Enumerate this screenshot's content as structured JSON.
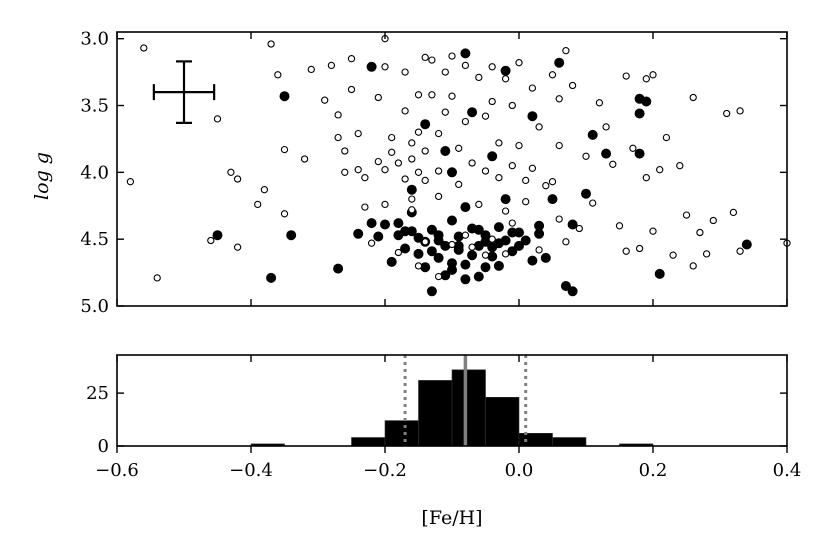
{
  "chart_data": [
    {
      "type": "scatter",
      "ylabel": "log g",
      "xlim": [
        -0.6,
        0.4
      ],
      "ylim": [
        5.0,
        2.95
      ],
      "y_inverted": true,
      "yticks": [
        3.0,
        3.5,
        4.0,
        4.5,
        5.0
      ],
      "ytick_labels": [
        "3.0",
        "3.5",
        "4.0",
        "4.5",
        "5.0"
      ],
      "xticks": [
        -0.6,
        -0.4,
        -0.2,
        0.0,
        0.2,
        0.4
      ],
      "xtick_labels": [
        "",
        "",
        "",
        "",
        "",
        ""
      ],
      "error_bar": {
        "x": -0.5,
        "y": 3.4,
        "xerr": 0.045,
        "yerr": 0.23
      },
      "series": [
        {
          "marker": "filled-circle",
          "color": "#000000",
          "points": [
            [
              -0.45,
              4.47
            ],
            [
              -0.37,
              4.79
            ],
            [
              -0.35,
              3.43
            ],
            [
              -0.34,
              4.47
            ],
            [
              -0.27,
              4.72
            ],
            [
              -0.24,
              4.46
            ],
            [
              -0.22,
              3.21
            ],
            [
              -0.22,
              4.38
            ],
            [
              -0.21,
              4.48
            ],
            [
              -0.17,
              4.57
            ],
            [
              -0.16,
              4.44
            ],
            [
              -0.14,
              4.52
            ],
            [
              -0.12,
              4.47
            ],
            [
              -0.1,
              4.73
            ],
            [
              -0.09,
              4.55
            ],
            [
              -0.07,
              4.62
            ],
            [
              -0.05,
              4.52
            ],
            [
              -0.03,
              4.7
            ],
            [
              -0.01,
              4.59
            ],
            [
              0.01,
              4.51
            ],
            [
              0.03,
              4.4
            ],
            [
              -0.07,
              3.55
            ],
            [
              -0.02,
              3.24
            ],
            [
              0.02,
              3.58
            ],
            [
              0.03,
              4.46
            ],
            [
              0.06,
              3.18
            ],
            [
              0.07,
              4.85
            ],
            [
              0.08,
              4.89
            ],
            [
              0.11,
              3.72
            ],
            [
              0.13,
              3.86
            ],
            [
              0.18,
              3.45
            ],
            [
              0.18,
              3.56
            ],
            [
              0.19,
              3.47
            ],
            [
              0.18,
              3.86
            ],
            [
              0.21,
              4.76
            ],
            [
              0.34,
              4.54
            ],
            [
              -0.08,
              3.11
            ],
            [
              -0.11,
              3.84
            ],
            [
              -0.1,
              4.0
            ],
            [
              -0.04,
              3.88
            ],
            [
              -0.02,
              4.2
            ],
            [
              -0.13,
              4.89
            ],
            [
              -0.16,
              4.3
            ],
            [
              -0.18,
              4.47
            ],
            [
              -0.2,
              4.39
            ],
            [
              -0.06,
              4.43
            ],
            [
              -0.04,
              4.56
            ],
            [
              0.05,
              4.2
            ],
            [
              0.08,
              4.39
            ],
            [
              0.1,
              4.16
            ],
            [
              -0.19,
              4.67
            ],
            [
              -0.15,
              4.61
            ],
            [
              -0.12,
              4.64
            ],
            [
              -0.1,
              4.68
            ],
            [
              -0.08,
              4.69
            ],
            [
              -0.06,
              4.78
            ],
            [
              -0.04,
              4.63
            ],
            [
              -0.02,
              4.51
            ],
            [
              0.0,
              4.45
            ],
            [
              0.02,
              4.66
            ],
            [
              -0.13,
              4.43
            ],
            [
              -0.11,
              4.55
            ],
            [
              -0.09,
              4.48
            ],
            [
              -0.07,
              4.42
            ],
            [
              -0.05,
              4.47
            ],
            [
              -0.03,
              4.53
            ],
            [
              -0.01,
              4.45
            ],
            [
              0.04,
              4.64
            ],
            [
              -0.14,
              4.71
            ],
            [
              -0.11,
              4.77
            ],
            [
              -0.08,
              4.8
            ],
            [
              -0.15,
              4.49
            ],
            [
              -0.12,
              4.51
            ],
            [
              -0.09,
              4.58
            ],
            [
              -0.06,
              4.55
            ],
            [
              -0.03,
              4.41
            ],
            [
              -0.17,
              4.44
            ],
            [
              -0.13,
              4.59
            ],
            [
              -0.05,
              4.71
            ],
            [
              0.0,
              4.55
            ],
            [
              -0.14,
              3.64
            ],
            [
              -0.16,
              4.13
            ],
            [
              -0.18,
              4.38
            ],
            [
              -0.08,
              4.26
            ],
            [
              -0.1,
              4.36
            ]
          ]
        },
        {
          "marker": "open-circle",
          "color": "#000000",
          "points": [
            [
              -0.58,
              4.07
            ],
            [
              -0.56,
              3.07
            ],
            [
              -0.54,
              4.79
            ],
            [
              -0.46,
              4.51
            ],
            [
              -0.45,
              3.6
            ],
            [
              -0.43,
              4.0
            ],
            [
              -0.42,
              4.05
            ],
            [
              -0.42,
              4.56
            ],
            [
              -0.39,
              4.24
            ],
            [
              -0.38,
              4.13
            ],
            [
              -0.37,
              3.04
            ],
            [
              -0.36,
              3.27
            ],
            [
              -0.35,
              4.31
            ],
            [
              -0.35,
              3.83
            ],
            [
              -0.32,
              3.9
            ],
            [
              -0.31,
              3.23
            ],
            [
              -0.29,
              3.46
            ],
            [
              -0.28,
              3.2
            ],
            [
              -0.27,
              3.57
            ],
            [
              -0.27,
              3.74
            ],
            [
              -0.26,
              3.84
            ],
            [
              -0.26,
              4.0
            ],
            [
              -0.25,
              3.15
            ],
            [
              -0.25,
              3.38
            ],
            [
              -0.24,
              3.71
            ],
            [
              -0.24,
              3.98
            ],
            [
              -0.23,
              4.04
            ],
            [
              -0.23,
              4.26
            ],
            [
              -0.22,
              4.53
            ],
            [
              -0.21,
              3.44
            ],
            [
              -0.21,
              3.92
            ],
            [
              -0.2,
              3.0
            ],
            [
              -0.2,
              3.21
            ],
            [
              -0.2,
              4.24
            ],
            [
              -0.19,
              3.74
            ],
            [
              -0.19,
              3.85
            ],
            [
              -0.18,
              4.6
            ],
            [
              -0.17,
              3.25
            ],
            [
              -0.17,
              3.54
            ],
            [
              -0.17,
              4.05
            ],
            [
              -0.16,
              3.78
            ],
            [
              -0.16,
              3.9
            ],
            [
              -0.16,
              4.2
            ],
            [
              -0.15,
              3.42
            ],
            [
              -0.15,
              3.7
            ],
            [
              -0.15,
              4.0
            ],
            [
              -0.14,
              3.14
            ],
            [
              -0.14,
              3.84
            ],
            [
              -0.13,
              3.16
            ],
            [
              -0.13,
              3.42
            ],
            [
              -0.12,
              3.71
            ],
            [
              -0.12,
              3.99
            ],
            [
              -0.11,
              3.25
            ],
            [
              -0.11,
              3.55
            ],
            [
              -0.1,
              3.13
            ],
            [
              -0.1,
              3.43
            ],
            [
              -0.09,
              3.82
            ],
            [
              -0.08,
              3.2
            ],
            [
              -0.08,
              3.62
            ],
            [
              -0.07,
              3.93
            ],
            [
              -0.06,
              3.29
            ],
            [
              -0.05,
              3.58
            ],
            [
              -0.05,
              3.99
            ],
            [
              -0.04,
              3.21
            ],
            [
              -0.04,
              3.47
            ],
            [
              -0.03,
              3.78
            ],
            [
              -0.03,
              4.04
            ],
            [
              -0.02,
              3.3
            ],
            [
              -0.01,
              3.5
            ],
            [
              -0.01,
              3.95
            ],
            [
              0.0,
              3.18
            ],
            [
              0.0,
              3.8
            ],
            [
              0.01,
              4.06
            ],
            [
              0.02,
              3.37
            ],
            [
              0.02,
              3.97
            ],
            [
              0.03,
              3.66
            ],
            [
              0.04,
              4.1
            ],
            [
              0.05,
              3.27
            ],
            [
              0.06,
              3.45
            ],
            [
              0.06,
              3.8
            ],
            [
              0.07,
              3.09
            ],
            [
              0.08,
              3.35
            ],
            [
              0.1,
              3.88
            ],
            [
              0.11,
              4.23
            ],
            [
              0.12,
              3.48
            ],
            [
              0.13,
              3.66
            ],
            [
              0.14,
              3.94
            ],
            [
              0.15,
              4.4
            ],
            [
              0.16,
              3.28
            ],
            [
              0.16,
              4.59
            ],
            [
              0.17,
              3.82
            ],
            [
              0.18,
              4.57
            ],
            [
              0.19,
              3.3
            ],
            [
              0.19,
              4.04
            ],
            [
              0.2,
              3.27
            ],
            [
              0.2,
              4.44
            ],
            [
              0.21,
              3.98
            ],
            [
              0.22,
              3.74
            ],
            [
              0.23,
              4.62
            ],
            [
              0.24,
              3.95
            ],
            [
              0.25,
              4.32
            ],
            [
              0.26,
              3.44
            ],
            [
              0.26,
              4.7
            ],
            [
              0.27,
              4.45
            ],
            [
              0.28,
              4.61
            ],
            [
              0.29,
              4.36
            ],
            [
              0.31,
              3.56
            ],
            [
              0.32,
              4.3
            ],
            [
              0.33,
              3.54
            ],
            [
              0.33,
              4.59
            ],
            [
              0.4,
              4.53
            ],
            [
              -0.2,
              3.98
            ],
            [
              -0.18,
              3.93
            ],
            [
              -0.14,
              4.06
            ],
            [
              -0.12,
              4.18
            ],
            [
              -0.09,
              4.09
            ],
            [
              -0.06,
              4.24
            ],
            [
              -0.02,
              4.29
            ],
            [
              0.01,
              4.22
            ],
            [
              0.05,
              4.07
            ],
            [
              0.07,
              4.52
            ],
            [
              0.09,
              4.42
            ],
            [
              -0.15,
              4.7
            ],
            [
              -0.12,
              4.78
            ],
            [
              -0.1,
              4.54
            ],
            [
              -0.07,
              4.56
            ],
            [
              -0.04,
              4.5
            ],
            [
              -0.02,
              4.61
            ],
            [
              0.03,
              4.58
            ],
            [
              -0.14,
              4.52
            ],
            [
              -0.08,
              4.47
            ],
            [
              -0.05,
              4.62
            ],
            [
              -0.01,
              4.38
            ],
            [
              0.06,
              4.35
            ],
            [
              -0.16,
              4.28
            ]
          ]
        }
      ]
    },
    {
      "type": "bar",
      "xlabel": "[Fe/H]",
      "ylabel": "",
      "xlim": [
        -0.6,
        0.4
      ],
      "ylim": [
        0,
        43
      ],
      "yticks": [
        0,
        25
      ],
      "ytick_labels": [
        "0",
        "25"
      ],
      "xticks": [
        -0.6,
        -0.4,
        -0.2,
        0.0,
        0.2,
        0.4
      ],
      "xtick_labels": [
        "−0.6",
        "−0.4",
        "−0.2",
        "0.0",
        "0.2",
        "0.4"
      ],
      "bins": [
        {
          "x0": -0.4,
          "x1": -0.35,
          "count": 1
        },
        {
          "x0": -0.25,
          "x1": -0.2,
          "count": 4
        },
        {
          "x0": -0.2,
          "x1": -0.15,
          "count": 12
        },
        {
          "x0": -0.15,
          "x1": -0.1,
          "count": 31
        },
        {
          "x0": -0.1,
          "x1": -0.05,
          "count": 36
        },
        {
          "x0": -0.05,
          "x1": 0.0,
          "count": 23
        },
        {
          "x0": 0.0,
          "x1": 0.05,
          "count": 6
        },
        {
          "x0": 0.05,
          "x1": 0.1,
          "count": 4
        },
        {
          "x0": 0.15,
          "x1": 0.2,
          "count": 1
        }
      ],
      "mean_line": -0.08,
      "dotted_lines": [
        -0.17,
        0.01
      ],
      "bar_color": "#000000",
      "line_color": "#808080"
    }
  ]
}
